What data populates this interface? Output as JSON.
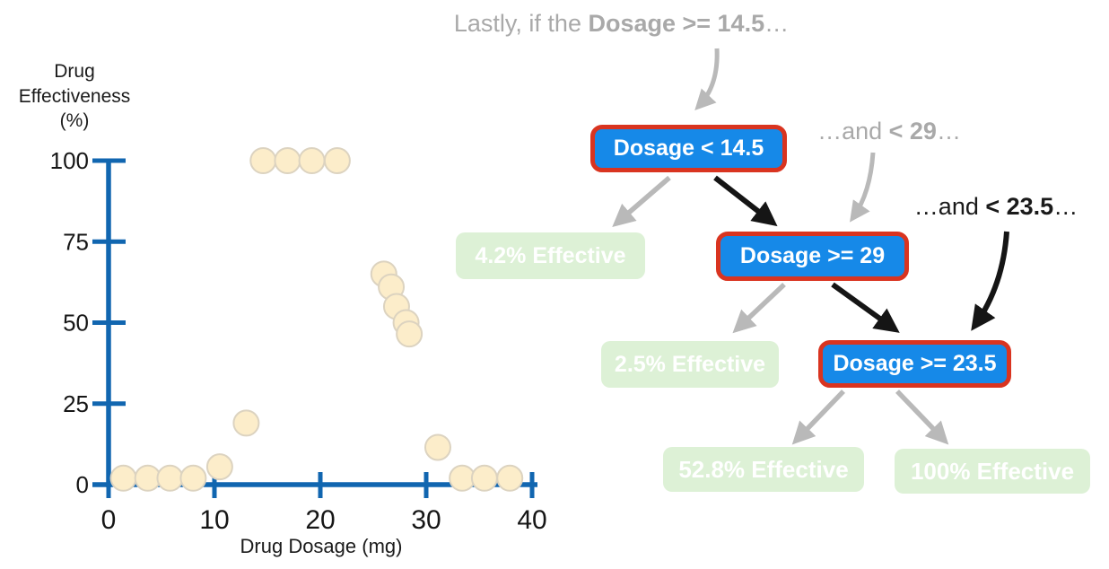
{
  "annotations": {
    "top": {
      "prefix": "Lastly, if the ",
      "bold": "Dosage >= 14.5",
      "suffix": "…"
    },
    "mid": {
      "prefix": "…and ",
      "bold": "< 29",
      "suffix": "…"
    },
    "low": {
      "prefix": "…and ",
      "bold": "< 23.5",
      "suffix": "…"
    }
  },
  "tree": {
    "root_label": "Dosage < 14.5",
    "node29_label": "Dosage >= 29",
    "node235_label": "Dosage >= 23.5",
    "leaf_42": "4.2% Effective",
    "leaf_25": "2.5% Effective",
    "leaf_528": "52.8% Effective",
    "leaf_100": "100% Effective"
  },
  "colors": {
    "node_fill": "#1689e8",
    "node_border": "#d93420",
    "node_text": "#ffffff",
    "leaf_fill": "#ddf1d6",
    "leaf_text": "#ffffff",
    "arrow_gray": "#b9b9b9",
    "arrow_black": "#151515",
    "annotation_gray": "#a9a9a9",
    "annotation_black": "#1a1a1a",
    "axis_blue": "#1166b0",
    "dot_fill": "#fcedca",
    "dot_stroke": "#dcd3c0"
  },
  "chart_data": {
    "type": "scatter",
    "title": "",
    "xlabel": "Drug Dosage (mg)",
    "ylabel": "Drug Effectiveness (%)",
    "xlim": [
      0,
      40
    ],
    "ylim": [
      0,
      100
    ],
    "xticks": [
      0,
      10,
      20,
      30,
      40
    ],
    "yticks": [
      0,
      25,
      50,
      75,
      100
    ],
    "grid": false,
    "legend": "none",
    "points": [
      [
        1.4,
        2
      ],
      [
        3.7,
        2
      ],
      [
        5.8,
        2
      ],
      [
        8,
        2
      ],
      [
        10.5,
        5.5
      ],
      [
        13,
        19
      ],
      [
        14.6,
        100
      ],
      [
        16.9,
        100
      ],
      [
        19.2,
        100
      ],
      [
        21.6,
        100
      ],
      [
        26,
        65
      ],
      [
        26.7,
        61
      ],
      [
        27.2,
        55
      ],
      [
        28.1,
        50
      ],
      [
        28.4,
        46.5
      ],
      [
        31.1,
        11.5
      ],
      [
        33.4,
        2
      ],
      [
        35.5,
        2
      ],
      [
        37.9,
        2
      ]
    ]
  }
}
